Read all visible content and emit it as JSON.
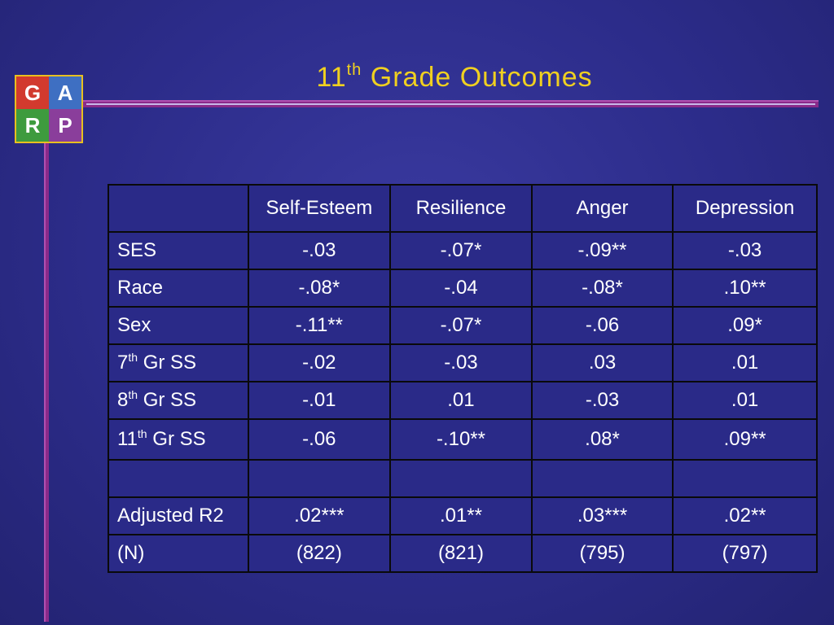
{
  "logo": {
    "letters": [
      "G",
      "A",
      "R",
      "P"
    ]
  },
  "title": {
    "main": "11",
    "sup": "th",
    "rest": "Grade Outcomes"
  },
  "table": {
    "headers": [
      "",
      "Self-Esteem",
      "Resilience",
      "Anger",
      "Depression"
    ],
    "rows": [
      {
        "label": "SES",
        "label_sup": "",
        "label_rest": "",
        "values": [
          "-.03",
          "-.07*",
          "-.09**",
          "-.03"
        ]
      },
      {
        "label": "Race",
        "label_sup": "",
        "label_rest": "",
        "values": [
          "-.08*",
          "-.04",
          "-.08*",
          ".10**"
        ]
      },
      {
        "label": "Sex",
        "label_sup": "",
        "label_rest": "",
        "values": [
          "-.11**",
          "-.07*",
          "-.06",
          ".09*"
        ]
      },
      {
        "label": "7",
        "label_sup": "th",
        "label_rest": " Gr SS",
        "values": [
          "-.02",
          "-.03",
          ".03",
          ".01"
        ]
      },
      {
        "label": "8",
        "label_sup": "th",
        "label_rest": " Gr SS",
        "values": [
          "-.01",
          ".01",
          "-.03",
          ".01"
        ]
      },
      {
        "label": "11",
        "label_sup": "th",
        "label_rest": " Gr SS",
        "values": [
          "-.06",
          "-.10**",
          ".08*",
          ".09**"
        ]
      },
      {
        "label": "",
        "label_sup": "",
        "label_rest": "",
        "values": [
          "",
          "",
          "",
          ""
        ]
      },
      {
        "label": "Adjusted R2",
        "label_sup": "",
        "label_rest": "",
        "values": [
          ".02***",
          ".01**",
          ".03***",
          ".02**"
        ]
      },
      {
        "label": "(N)",
        "label_sup": "",
        "label_rest": "",
        "values": [
          "(822)",
          "(821)",
          "(795)",
          "(797)"
        ]
      }
    ]
  },
  "colors": {
    "title": "#f0d020",
    "accent_line": "#8a2a8a",
    "background": "#2c2c8a"
  }
}
